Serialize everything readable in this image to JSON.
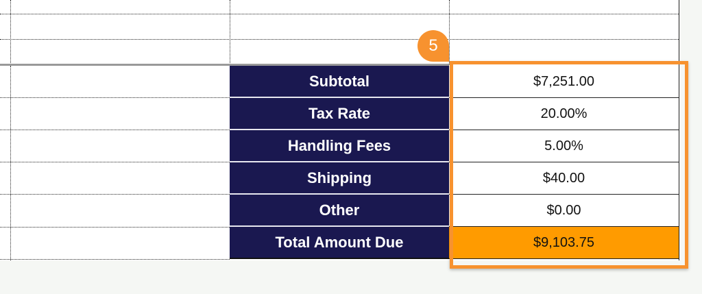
{
  "badge": {
    "number": "5",
    "color": "#f7922f"
  },
  "summary": [
    {
      "label": "Subtotal",
      "value": "$7,251.00"
    },
    {
      "label": "Tax Rate",
      "value": "20.00%"
    },
    {
      "label": "Handling Fees",
      "value": "5.00%"
    },
    {
      "label": "Shipping",
      "value": "$40.00"
    },
    {
      "label": "Other",
      "value": "$0.00"
    },
    {
      "label": "Total Amount Due",
      "value": "$9,103.75"
    }
  ],
  "colors": {
    "label_bg": "#1a1850",
    "total_bg": "#ff9b00",
    "highlight": "#f7922f"
  }
}
